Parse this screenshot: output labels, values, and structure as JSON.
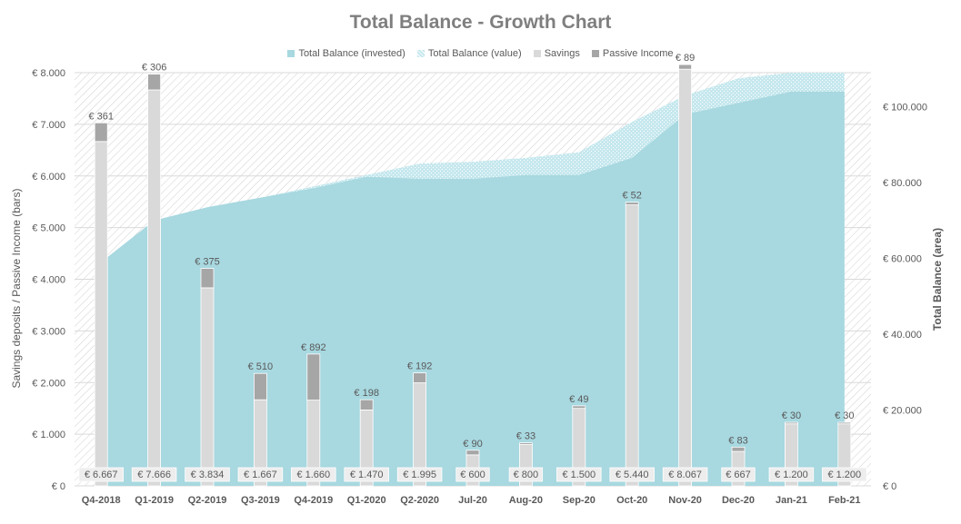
{
  "chart_data": {
    "type": "bar",
    "title": "Total Balance - Growth Chart",
    "legend": {
      "placement": "top",
      "items": [
        {
          "label": "Total Balance (invested)",
          "color": "#a8d8e0"
        },
        {
          "label": "Total Balance (value)",
          "color": "#c6e8ee"
        },
        {
          "label": "Savings",
          "color": "#d9d9d9"
        },
        {
          "label": "Passive Income",
          "color": "#a6a6a6"
        }
      ]
    },
    "categories": [
      "Q4-2018",
      "Q1-2019",
      "Q2-2019",
      "Q3-2019",
      "Q4-2019",
      "Q1-2020",
      "Q2-2020",
      "Jul-20",
      "Aug-20",
      "Sep-20",
      "Oct-20",
      "Nov-20",
      "Dec-20",
      "Jan-21",
      "Feb-21"
    ],
    "series": [
      {
        "name": "Savings",
        "axis": "left",
        "type": "bar",
        "color": "#d9d9d9",
        "values": [
          6667,
          7666,
          3834,
          1667,
          1660,
          1470,
          1995,
          600,
          800,
          1500,
          5440,
          8067,
          667,
          1200,
          1200
        ],
        "labels": [
          "€ 6.667",
          "€ 7.666",
          "€ 3.834",
          "€ 1.667",
          "€ 1.660",
          "€ 1.470",
          "€ 1.995",
          "€ 600",
          "€ 800",
          "€ 1.500",
          "€ 5.440",
          "€ 8.067",
          "€ 667",
          "€ 1.200",
          "€ 1.200"
        ]
      },
      {
        "name": "Passive Income",
        "axis": "left",
        "type": "bar",
        "stacked": true,
        "color": "#a6a6a6",
        "values": [
          361,
          306,
          375,
          510,
          892,
          198,
          192,
          90,
          33,
          49,
          52,
          89,
          83,
          30,
          30
        ],
        "labels": [
          "€ 361",
          "€ 306",
          "€ 375",
          "€ 510",
          "€ 892",
          "€ 198",
          "€ 192",
          "€ 90",
          "€ 33",
          "€ 49",
          "€ 52",
          "€ 89",
          "€ 83",
          "€ 30",
          "€ 30"
        ]
      },
      {
        "name": "Total Balance (invested)",
        "axis": "right",
        "type": "area",
        "color": "#a8d8e0",
        "values": [
          59000,
          70000,
          73500,
          76000,
          78500,
          81500,
          81000,
          81000,
          82000,
          82000,
          86500,
          98000,
          101000,
          104000,
          104000
        ]
      },
      {
        "name": "Total Balance (value)",
        "axis": "right",
        "type": "area",
        "color": "#c6e8ee",
        "values": [
          59000,
          70000,
          73500,
          76000,
          79000,
          82000,
          85000,
          85500,
          86500,
          88000,
          96000,
          103000,
          107500,
          109000,
          109000
        ]
      }
    ],
    "y_left": {
      "label": "Savings deposits / Passive Income (bars)",
      "range": [
        0,
        8000
      ],
      "ticks": [
        0,
        1000,
        2000,
        3000,
        4000,
        5000,
        6000,
        7000,
        8000
      ],
      "tick_labels": [
        "€ 0",
        "€ 1.000",
        "€ 2.000",
        "€ 3.000",
        "€ 4.000",
        "€ 5.000",
        "€ 6.000",
        "€ 7.000",
        "€ 8.000"
      ]
    },
    "y_right": {
      "label": "Total Balance (area)",
      "range": [
        0,
        109000
      ],
      "ticks": [
        0,
        20000,
        40000,
        60000,
        80000,
        100000
      ],
      "tick_labels": [
        "€ 0",
        "€ 20.000",
        "€ 40.000",
        "€ 60.000",
        "€ 80.000",
        "€ 100.000"
      ]
    },
    "grid": true
  }
}
